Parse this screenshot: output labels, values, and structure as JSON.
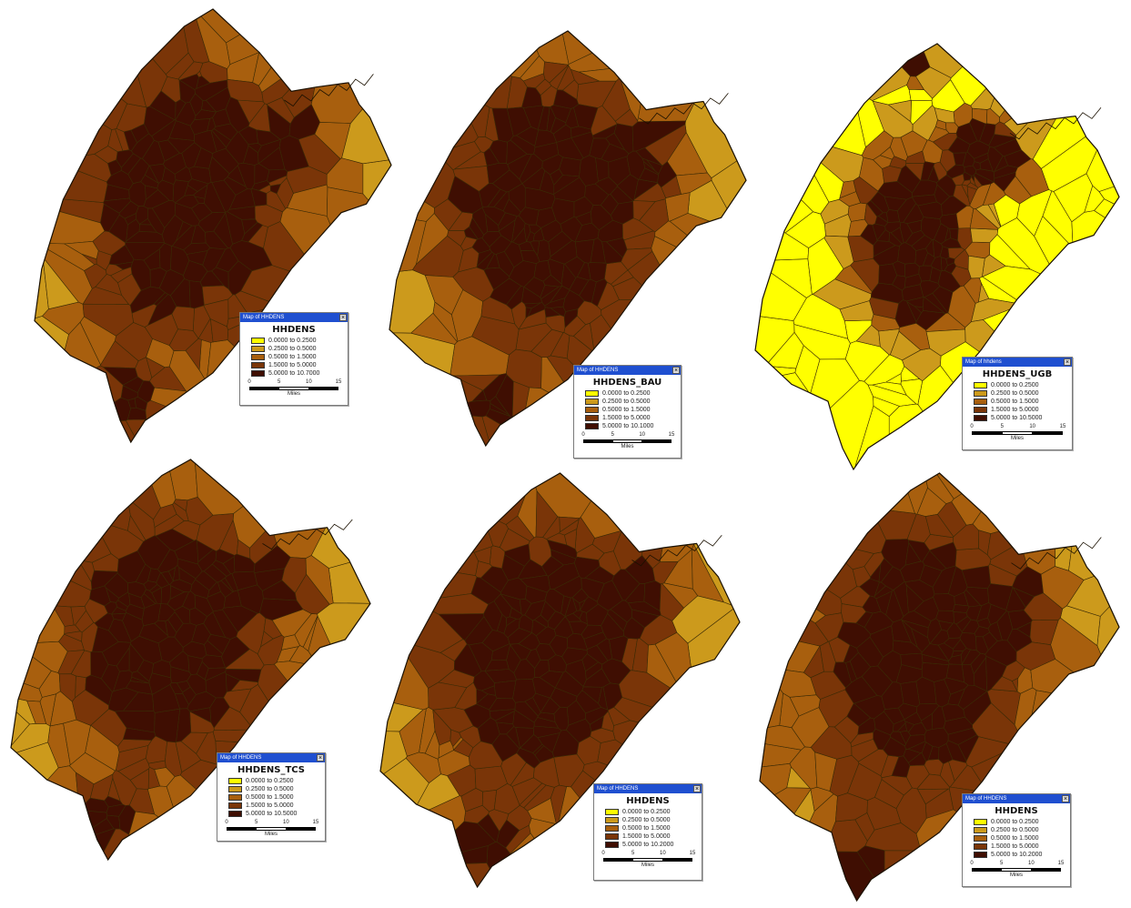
{
  "colors": {
    "class1": "#ffff00",
    "class2": "#cc9a1c",
    "class3": "#a85f0e",
    "class4": "#7a3508",
    "class5": "#3f0e02",
    "outline": "#3a2a05",
    "titlebar": "#1f4fd0"
  },
  "icons": {
    "close": "close-icon"
  },
  "maps": [
    {
      "legend": {
        "window_title": "Map of HHDENS",
        "heading": "HHDENS",
        "classes": [
          "0.0000 to 0.2500",
          "0.2500 to 0.5000",
          "0.5000 to 1.5000",
          "1.5000 to 5.0000",
          "5.0000 to 10.7000"
        ],
        "scale_ticks": [
          "0",
          "5",
          "10",
          "15"
        ],
        "scale_units": "Miles"
      }
    },
    {
      "legend": {
        "window_title": "Map of HHDENS",
        "heading": "HHDENS_BAU",
        "classes": [
          "0.0000 to 0.2500",
          "0.2500 to 0.5000",
          "0.5000 to 1.5000",
          "1.5000 to 5.0000",
          "5.0000 to 10.1000"
        ],
        "scale_ticks": [
          "0",
          "5",
          "10",
          "15"
        ],
        "scale_units": "Miles"
      }
    },
    {
      "legend": {
        "window_title": "Map of hhdens",
        "heading": "HHDENS_UGB",
        "classes": [
          "0.0000 to 0.2500",
          "0.2500 to 0.5000",
          "0.5000 to 1.5000",
          "1.5000 to 5.0000",
          "5.0000 to 10.5000"
        ],
        "scale_ticks": [
          "0",
          "5",
          "10",
          "15"
        ],
        "scale_units": "Miles"
      }
    },
    {
      "legend": {
        "window_title": "Map of HHDENS",
        "heading": "HHDENS_TCS",
        "classes": [
          "0.0000 to 0.2500",
          "0.2500 to 0.5000",
          "0.5000 to 1.5000",
          "1.5000 to 5.0000",
          "5.0000 to 10.5000"
        ],
        "scale_ticks": [
          "0",
          "5",
          "10",
          "15"
        ],
        "scale_units": "Miles"
      }
    },
    {
      "legend": {
        "window_title": "Map of HHDENS",
        "heading": "HHDENS",
        "classes": [
          "0.0000 to 0.2500",
          "0.2500 to 0.5000",
          "0.5000 to 1.5000",
          "1.5000 to 5.0000",
          "5.0000 to 10.2000"
        ],
        "scale_ticks": [
          "0",
          "5",
          "10",
          "15"
        ],
        "scale_units": "Miles"
      }
    },
    {
      "legend": {
        "window_title": "Map of HHDENS",
        "heading": "HHDENS",
        "classes": [
          "0.0000 to 0.2500",
          "0.2500 to 0.5000",
          "0.5000 to 1.5000",
          "1.5000 to 5.0000",
          "5.0000 to 10.2000"
        ],
        "scale_ticks": [
          "0",
          "5",
          "10",
          "15"
        ],
        "scale_units": "Miles"
      }
    }
  ]
}
